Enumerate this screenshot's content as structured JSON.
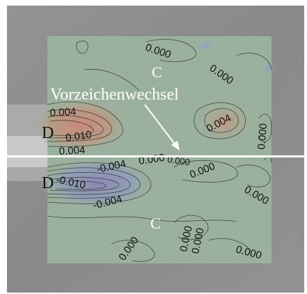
{
  "figure": {
    "annotation": "Vorzeichenwechsel",
    "region_labels": {
      "top_left_d": "D",
      "bottom_left_d": "D",
      "top_c": "C",
      "bottom_c": "C"
    },
    "contour_labels": {
      "l1": "0.000",
      "l2": "0.000",
      "l3": "0.004",
      "l4": "0.010",
      "l5": "0.004",
      "l6": "0.004",
      "l7": "0.000",
      "l8": "-0.004",
      "l9": "0.000",
      "l10": "0.000",
      "l11": "-0.010",
      "l12": "-0.004",
      "l13": "0.000",
      "l14": "0.000",
      "l15": "0.000",
      "l16": "0.000",
      "l17": "0.000",
      "l18": "0.000",
      "l19": "0.000"
    }
  }
}
